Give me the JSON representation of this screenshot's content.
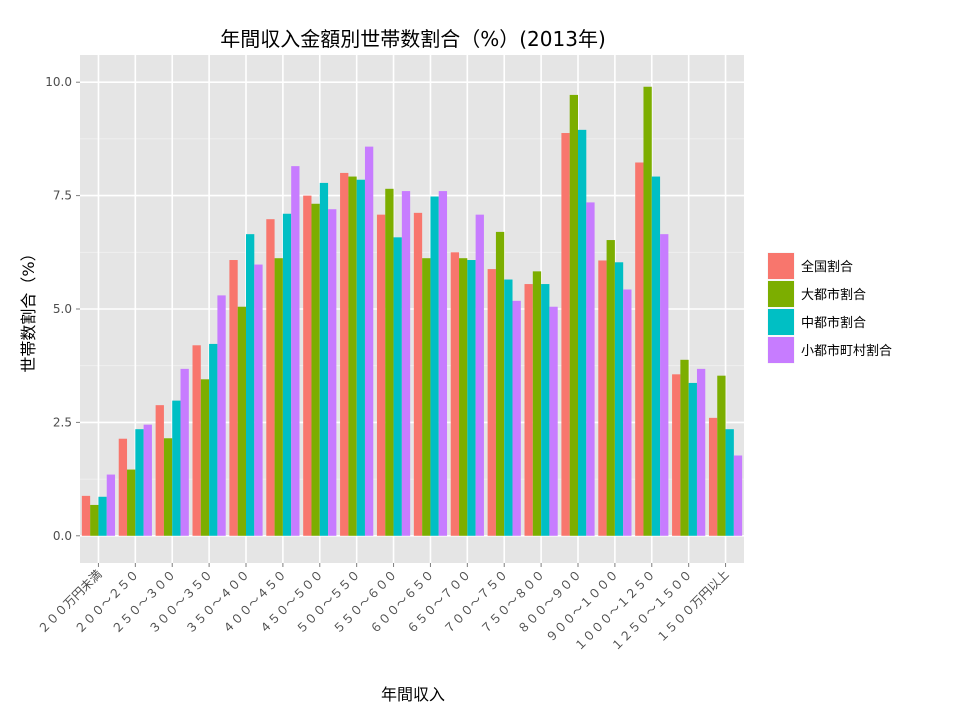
{
  "chart_data": {
    "type": "bar",
    "title": "年間収入金額別世帯数割合（%）(2013年)",
    "xlabel": "年間収入",
    "ylabel": "世帯数割合（%）",
    "ylim": [
      -0.6,
      10.6
    ],
    "yticks": [
      0.0,
      2.5,
      5.0,
      7.5,
      10.0
    ],
    "ytick_labels": [
      "0.0",
      "2.5",
      "5.0",
      "7.5",
      "10.0"
    ],
    "grid": true,
    "legend_position": "right",
    "categories": [
      "２００万円未満",
      "２００～２５０",
      "２５０～３００",
      "３００～３５０",
      "３５０～４００",
      "４００～４５０",
      "４５０～５００",
      "５００～５５０",
      "５５０～６００",
      "６００～６５０",
      "６５０～７００",
      "７００～７５０",
      "７５０～８００",
      "８００～９００",
      "９００～１０００",
      "１０００～１２５０",
      "１２５０～１５００",
      "１５００万円以上"
    ],
    "series": [
      {
        "name": "全国割合",
        "color": "#F8766D",
        "values": [
          0.88,
          2.14,
          2.88,
          4.2,
          6.08,
          6.98,
          7.5,
          8.0,
          7.08,
          7.12,
          6.25,
          5.88,
          5.55,
          8.88,
          6.07,
          8.23,
          3.56,
          2.6
        ]
      },
      {
        "name": "大都市割合",
        "color": "#7CAE00",
        "values": [
          0.68,
          1.46,
          2.15,
          3.45,
          5.05,
          6.12,
          7.32,
          7.92,
          7.65,
          6.12,
          6.12,
          6.7,
          5.83,
          9.72,
          6.52,
          9.9,
          3.88,
          3.53
        ]
      },
      {
        "name": "中都市割合",
        "color": "#00BFC4",
        "values": [
          0.86,
          2.35,
          2.98,
          4.23,
          6.65,
          7.1,
          7.78,
          7.85,
          6.58,
          7.48,
          6.08,
          5.65,
          5.55,
          8.95,
          6.03,
          7.92,
          3.37,
          2.35
        ]
      },
      {
        "name": "小都市町村割合",
        "color": "#C77CFF",
        "values": [
          1.35,
          2.45,
          3.68,
          5.3,
          5.98,
          8.15,
          7.2,
          8.58,
          7.6,
          7.6,
          7.08,
          5.18,
          5.05,
          7.35,
          5.43,
          6.65,
          3.68,
          1.77
        ]
      }
    ]
  }
}
